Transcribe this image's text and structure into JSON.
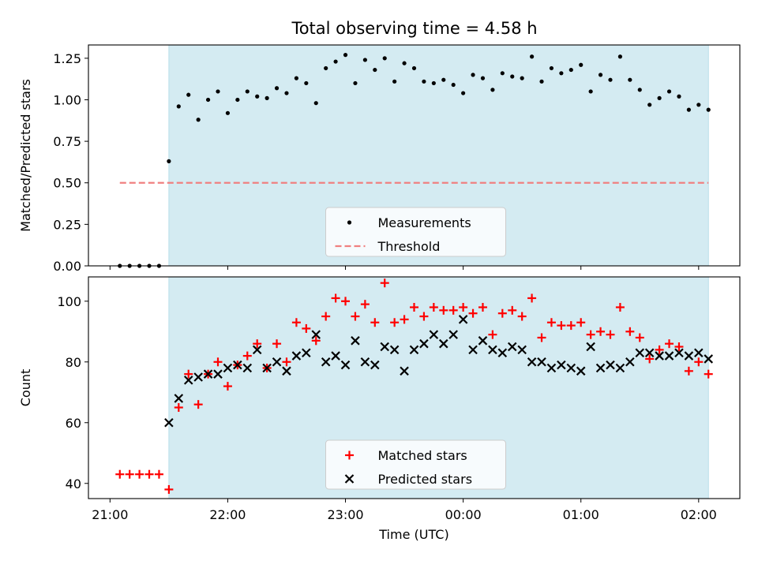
{
  "title": "Total observing time = 4.58 h",
  "colors": {
    "shade": "#d4ebf2",
    "threshold": "#f08080",
    "matched": "#ff0000",
    "predicted": "#000000",
    "measurement": "#000000"
  },
  "chart_data": [
    {
      "type": "scatter",
      "panel": "top",
      "title": "Total observing time = 4.58 h",
      "xlabel": "",
      "ylabel": "Matched/Predicted stars",
      "xlim": [
        "20:49",
        "02:21"
      ],
      "ylim": [
        0,
        1.33
      ],
      "yticks": [
        0.0,
        0.25,
        0.5,
        0.75,
        1.0,
        1.25
      ],
      "ytick_labels": [
        "0.00",
        "0.25",
        "0.50",
        "0.75",
        "1.00",
        "1.25"
      ],
      "xticks": [
        "21:00",
        "22:00",
        "23:00",
        "00:00",
        "01:00",
        "02:00"
      ],
      "observing_window": [
        "21:30",
        "02:05"
      ],
      "legend": {
        "placement": "lower-center",
        "entries": [
          "Measurements",
          "Threshold"
        ]
      },
      "threshold": {
        "name": "Threshold",
        "value": 0.5,
        "x": [
          "21:05",
          "02:05"
        ]
      },
      "series": [
        {
          "name": "Measurements",
          "x": [
            "21:05",
            "21:10",
            "21:15",
            "21:20",
            "21:25",
            "21:30",
            "21:35",
            "21:40",
            "21:45",
            "21:50",
            "21:55",
            "22:00",
            "22:05",
            "22:10",
            "22:15",
            "22:20",
            "22:25",
            "22:30",
            "22:35",
            "22:40",
            "22:45",
            "22:50",
            "22:55",
            "23:00",
            "23:05",
            "23:10",
            "23:15",
            "23:20",
            "23:25",
            "23:30",
            "23:35",
            "23:40",
            "23:45",
            "23:50",
            "23:55",
            "00:00",
            "00:05",
            "00:10",
            "00:15",
            "00:20",
            "00:25",
            "00:30",
            "00:35",
            "00:40",
            "00:45",
            "00:50",
            "00:55",
            "01:00",
            "01:05",
            "01:10",
            "01:15",
            "01:20",
            "01:25",
            "01:30",
            "01:35",
            "01:40",
            "01:45",
            "01:50",
            "01:55",
            "02:00",
            "02:05"
          ],
          "values": [
            0.0,
            0.0,
            0.0,
            0.0,
            0.0,
            0.63,
            0.96,
            1.03,
            0.88,
            1.0,
            1.05,
            0.92,
            1.0,
            1.05,
            1.02,
            1.01,
            1.07,
            1.04,
            1.13,
            1.1,
            0.98,
            1.19,
            1.23,
            1.27,
            1.1,
            1.24,
            1.18,
            1.25,
            1.11,
            1.22,
            1.19,
            1.11,
            1.1,
            1.12,
            1.09,
            1.04,
            1.15,
            1.13,
            1.06,
            1.16,
            1.14,
            1.13,
            1.26,
            1.11,
            1.19,
            1.16,
            1.18,
            1.21,
            1.05,
            1.15,
            1.12,
            1.26,
            1.12,
            1.06,
            0.97,
            1.01,
            1.05,
            1.02,
            0.94,
            0.97,
            0.94
          ]
        }
      ]
    },
    {
      "type": "scatter",
      "panel": "bottom",
      "xlabel": "Time (UTC)",
      "ylabel": "Count",
      "xlim": [
        "20:49",
        "02:21"
      ],
      "ylim": [
        35,
        108
      ],
      "yticks": [
        40,
        60,
        80,
        100
      ],
      "ytick_labels": [
        "40",
        "60",
        "80",
        "100"
      ],
      "xticks": [
        "21:00",
        "22:00",
        "23:00",
        "00:00",
        "01:00",
        "02:00"
      ],
      "xtick_labels": [
        "21:00",
        "22:00",
        "23:00",
        "00:00",
        "01:00",
        "02:00"
      ],
      "observing_window": [
        "21:30",
        "02:05"
      ],
      "legend": {
        "placement": "lower-center",
        "entries": [
          "Matched stars",
          "Predicted stars"
        ]
      },
      "x": [
        "21:05",
        "21:10",
        "21:15",
        "21:20",
        "21:25",
        "21:30",
        "21:35",
        "21:40",
        "21:45",
        "21:50",
        "21:55",
        "22:00",
        "22:05",
        "22:10",
        "22:15",
        "22:20",
        "22:25",
        "22:30",
        "22:35",
        "22:40",
        "22:45",
        "22:50",
        "22:55",
        "23:00",
        "23:05",
        "23:10",
        "23:15",
        "23:20",
        "23:25",
        "23:30",
        "23:35",
        "23:40",
        "23:45",
        "23:50",
        "23:55",
        "00:00",
        "00:05",
        "00:10",
        "00:15",
        "00:20",
        "00:25",
        "00:30",
        "00:35",
        "00:40",
        "00:45",
        "00:50",
        "00:55",
        "01:00",
        "01:05",
        "01:10",
        "01:15",
        "01:20",
        "01:25",
        "01:30",
        "01:35",
        "01:40",
        "01:45",
        "01:50",
        "01:55",
        "02:00",
        "02:05"
      ],
      "series": [
        {
          "name": "Matched stars",
          "marker": "plus",
          "values": [
            43,
            43,
            43,
            43,
            43,
            38,
            65,
            76,
            66,
            76,
            80,
            72,
            79,
            82,
            86,
            78,
            86,
            80,
            93,
            91,
            87,
            95,
            101,
            100,
            95,
            99,
            93,
            106,
            93,
            94,
            98,
            95,
            98,
            97,
            97,
            98,
            96,
            98,
            89,
            96,
            97,
            95,
            101,
            88,
            93,
            92,
            92,
            93,
            89,
            90,
            89,
            98,
            90,
            88,
            81,
            84,
            86,
            85,
            77,
            80,
            76
          ]
        },
        {
          "name": "Predicted stars",
          "marker": "x",
          "x_start": "21:30",
          "values": [
            60,
            68,
            74,
            75,
            76,
            76,
            78,
            79,
            78,
            84,
            78,
            80,
            77,
            82,
            83,
            89,
            80,
            82,
            79,
            87,
            80,
            79,
            85,
            84,
            77,
            84,
            86,
            89,
            86,
            89,
            94,
            84,
            87,
            84,
            83,
            85,
            84,
            80,
            80,
            78,
            79,
            78,
            77,
            85,
            78,
            79,
            78,
            80,
            83,
            83,
            82,
            82,
            83,
            82,
            83,
            81
          ]
        }
      ]
    }
  ]
}
